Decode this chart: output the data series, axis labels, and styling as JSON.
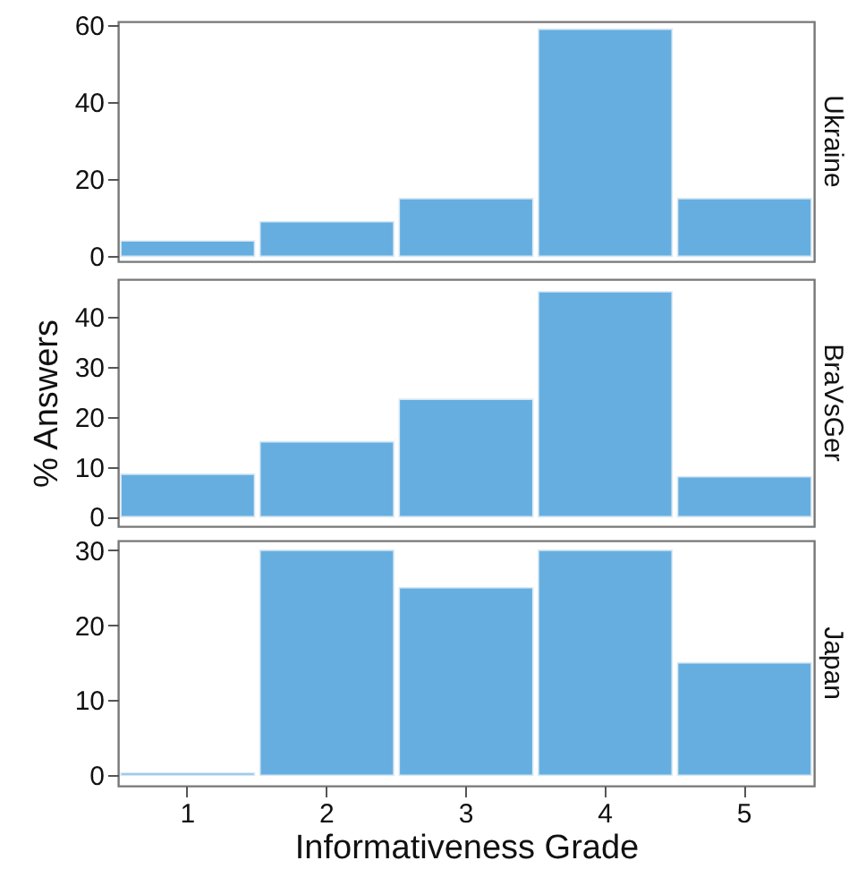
{
  "chart_data": [
    {
      "type": "bar",
      "title": "Ukraine",
      "categories": [
        "1",
        "2",
        "3",
        "4",
        "5"
      ],
      "values": [
        4,
        9,
        15,
        59,
        15
      ],
      "color": "#66aee0",
      "ylim": [
        -1.3,
        61
      ],
      "yticks": [
        0,
        20,
        40,
        60
      ],
      "grid": false,
      "tick_labels": "y"
    },
    {
      "type": "bar",
      "title": "BraVsGer",
      "ylabel": "% Answers",
      "categories": [
        "1",
        "2",
        "3",
        "4",
        "5"
      ],
      "values": [
        8.5,
        15,
        23.5,
        45,
        8
      ],
      "color": "#66aee0",
      "ylim": [
        -1.9,
        47.5
      ],
      "yticks": [
        0,
        10,
        20,
        30,
        40
      ],
      "grid": false,
      "tick_labels": "y"
    },
    {
      "type": "bar",
      "title": "Japan",
      "xlabel": "Informativeness Grade",
      "categories": [
        "1",
        "2",
        "3",
        "4",
        "5"
      ],
      "values": [
        0.3,
        30,
        25,
        30,
        15
      ],
      "color": "#66aee0",
      "ylim": [
        -1.4,
        31.3
      ],
      "yticks": [
        0,
        10,
        20,
        30
      ],
      "grid": false
    }
  ]
}
